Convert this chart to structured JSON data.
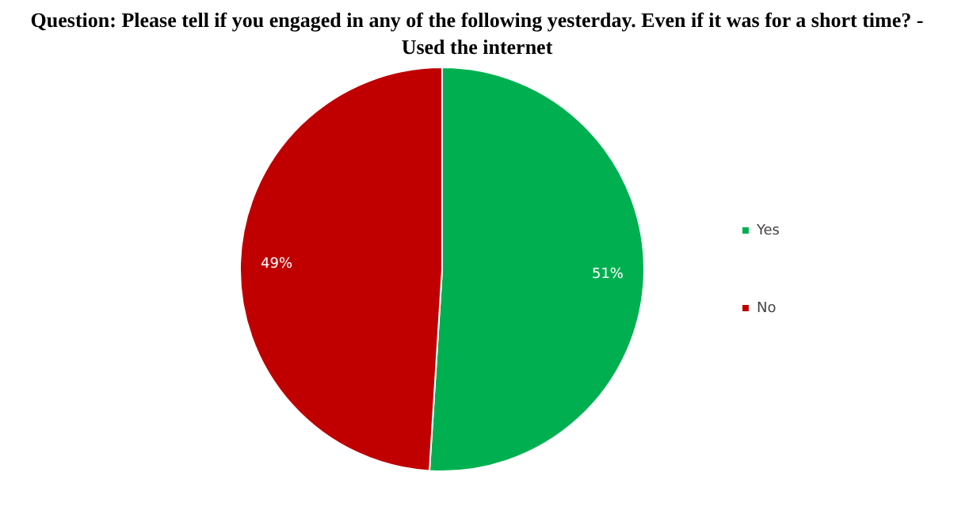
{
  "chart_data": {
    "type": "pie",
    "title": "Question: Please tell if you engaged in any of the following yesterday. Even if it was for a short time? - Used the internet",
    "categories": [
      "Yes",
      "No"
    ],
    "values": [
      51,
      49
    ],
    "colors": [
      "#00b050",
      "#c00000"
    ],
    "value_labels": [
      "51%",
      "49%"
    ],
    "legend": "right"
  }
}
